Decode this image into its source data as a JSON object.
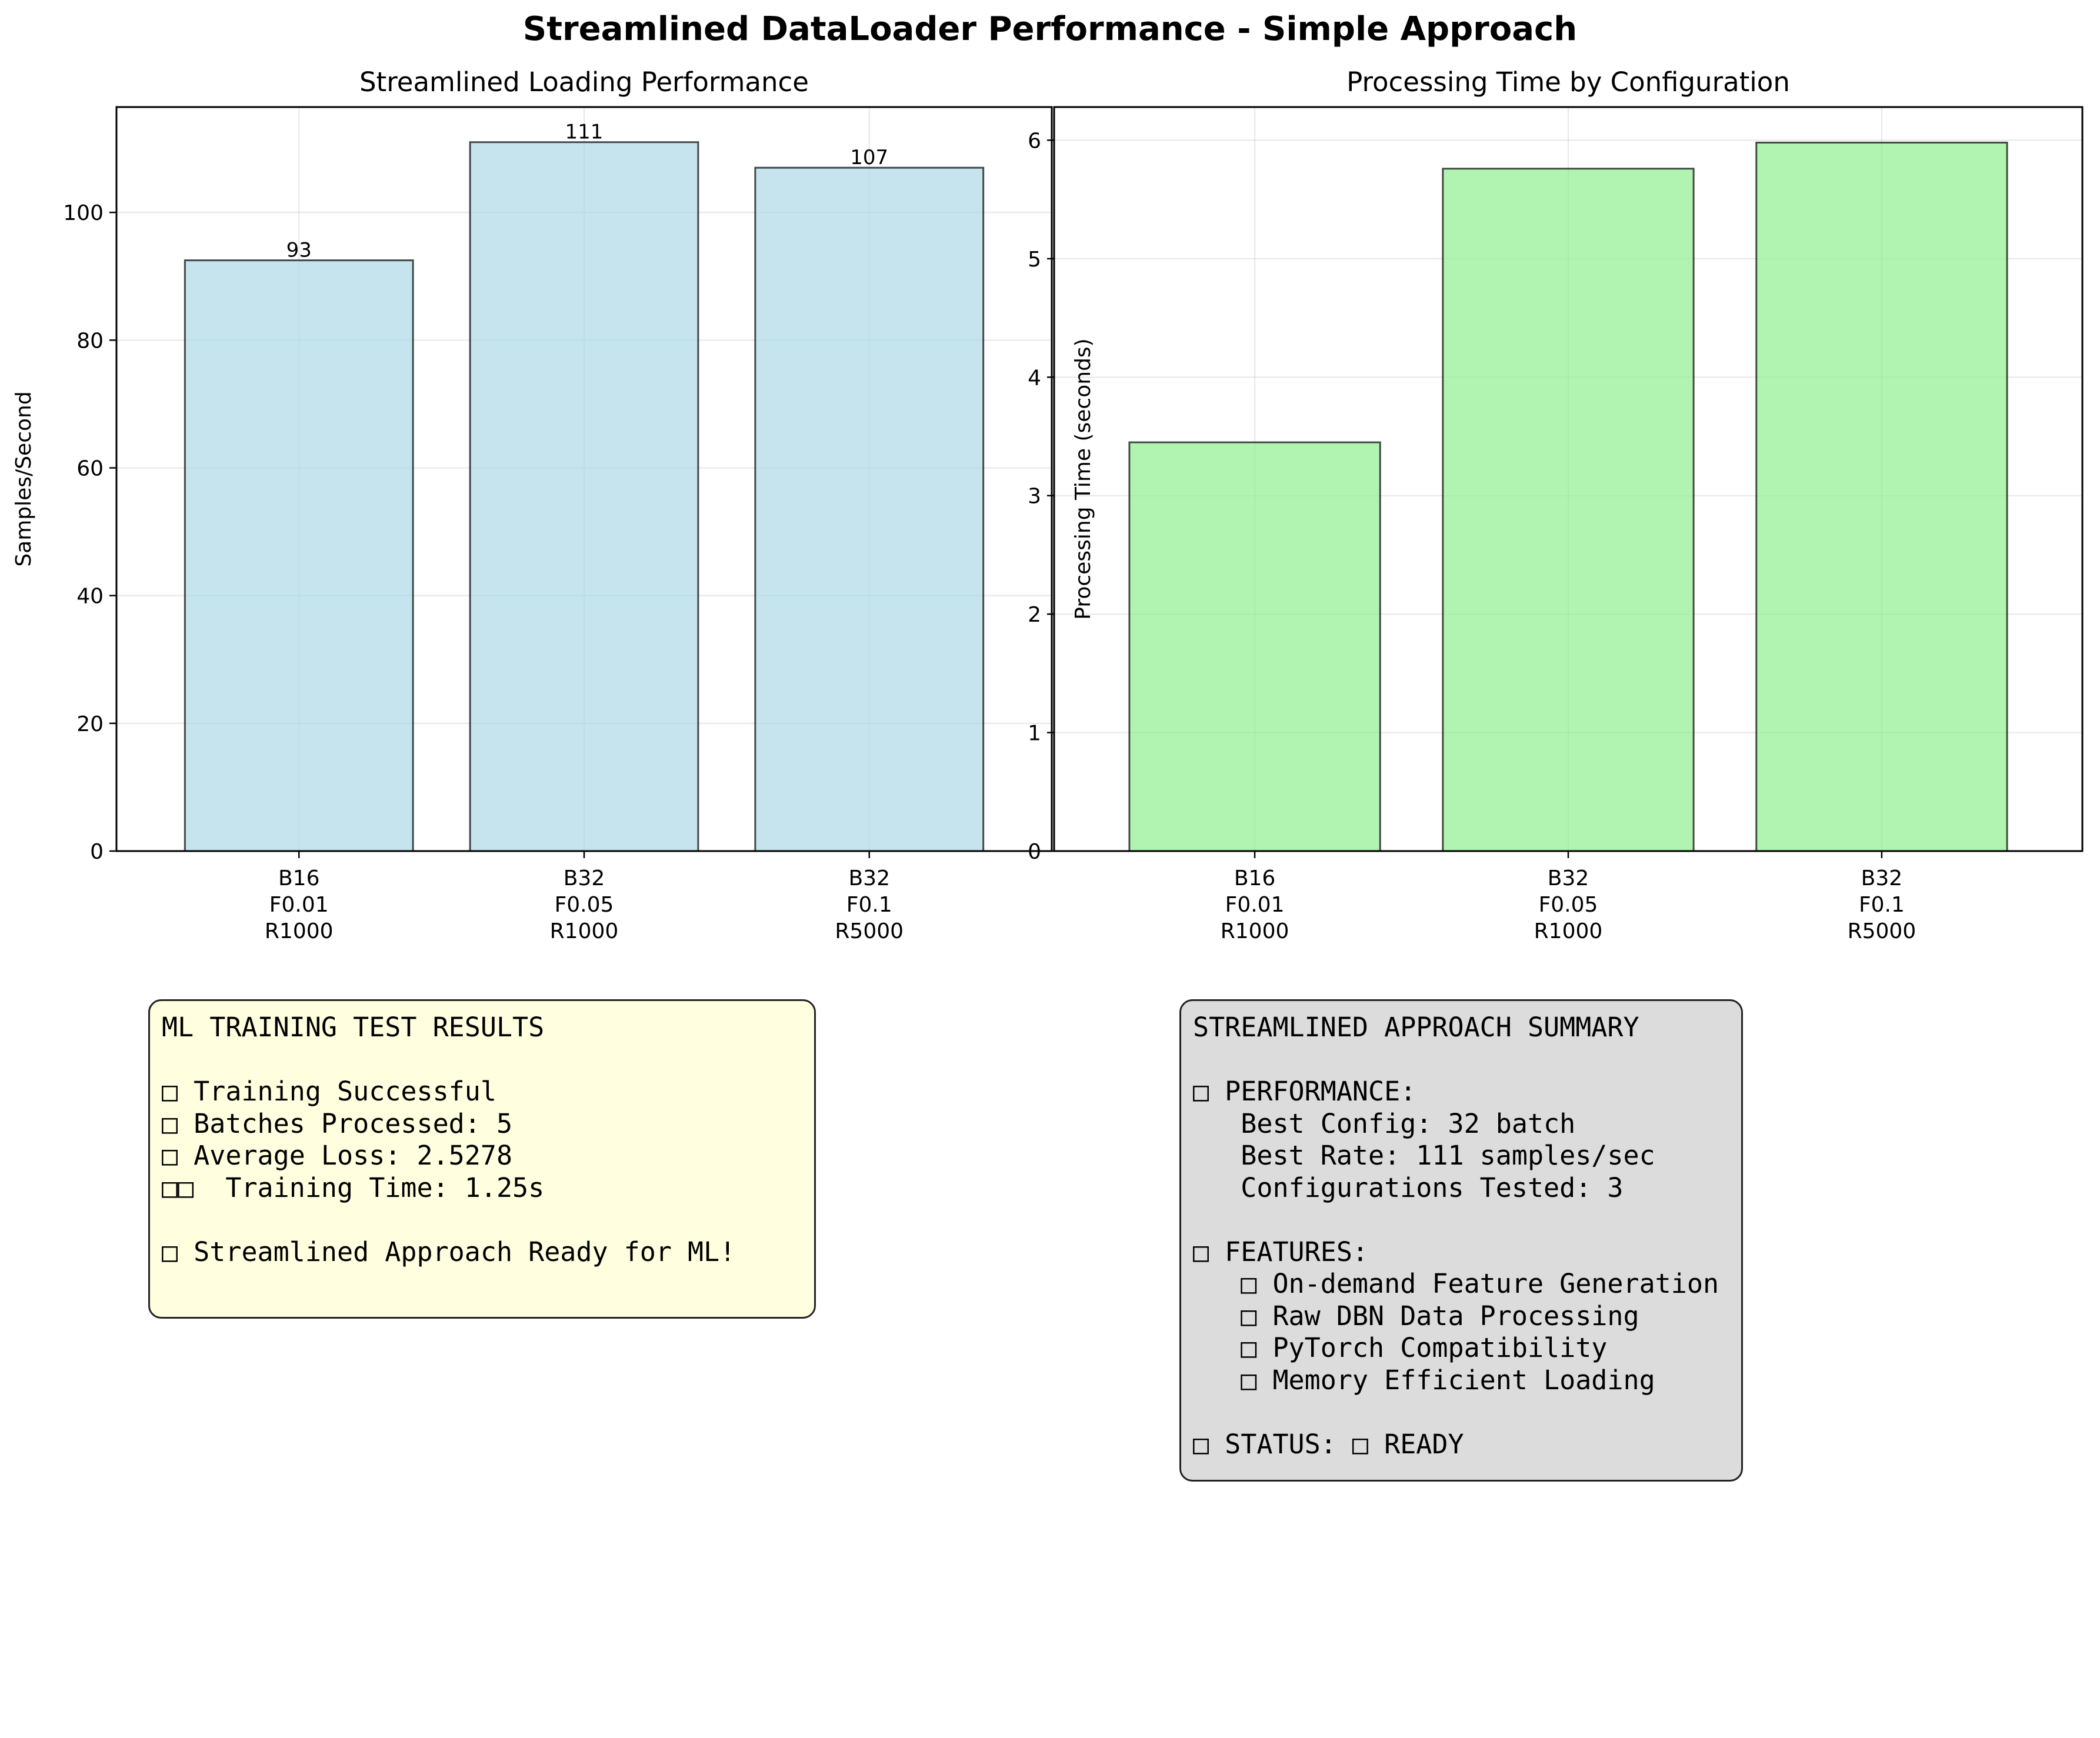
{
  "figure": {
    "suptitle": "Streamlined DataLoader Performance - Simple Approach"
  },
  "chart_data": [
    {
      "type": "bar",
      "title": "Streamlined Loading Performance",
      "xlabel": "",
      "ylabel": "Samples/Second",
      "categories": [
        "B16\nF0.01\nR1000",
        "B32\nF0.05\nR1000",
        "B32\nF0.1\nR5000"
      ],
      "values": [
        92.5,
        111.0,
        107.0
      ],
      "data_labels": [
        "93",
        "111",
        "107"
      ],
      "ylim": [
        0,
        116.5
      ],
      "yticks": [
        0,
        20,
        40,
        60,
        80,
        100
      ],
      "grid": true,
      "bar_color": "#add8e6",
      "edge_color": "#000000"
    },
    {
      "type": "bar",
      "title": "Processing Time by Configuration",
      "xlabel": "",
      "ylabel": "Processing Time (seconds)",
      "categories": [
        "B16\nF0.01\nR1000",
        "B32\nF0.05\nR1000",
        "B32\nF0.1\nR5000"
      ],
      "values": [
        3.45,
        5.76,
        5.98
      ],
      "ylim": [
        0,
        6.28
      ],
      "yticks": [
        0,
        1,
        2,
        3,
        4,
        5,
        6
      ],
      "grid": true,
      "bar_color": "#90ee90",
      "edge_color": "#000000"
    }
  ],
  "results_box": {
    "lines": [
      "ML TRAINING TEST RESULTS",
      "",
      "□ Training Successful",
      "□ Batches Processed: 5",
      "□ Average Loss: 2.5278",
      "□□  Training Time: 1.25s",
      "",
      "□ Streamlined Approach Ready for ML!"
    ],
    "background": "#ffffe0"
  },
  "summary_box": {
    "lines": [
      "STREAMLINED APPROACH SUMMARY",
      "",
      "□ PERFORMANCE:",
      "   Best Config: 32 batch",
      "   Best Rate: 111 samples/sec",
      "   Configurations Tested: 3",
      "",
      "□ FEATURES:",
      "   □ On-demand Feature Generation",
      "   □ Raw DBN Data Processing",
      "   □ PyTorch Compatibility",
      "   □ Memory Efficient Loading",
      "",
      "□ STATUS: □ READY"
    ],
    "background": "#dcdcdc"
  }
}
